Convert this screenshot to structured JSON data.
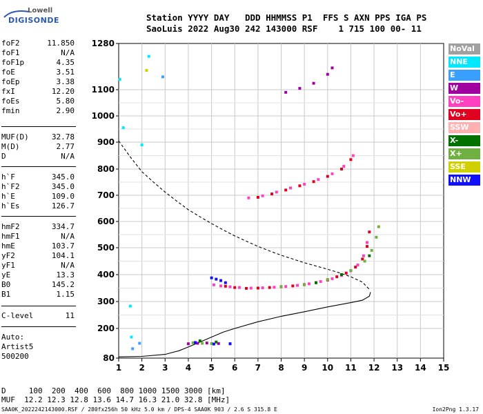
{
  "logo": {
    "line1": "Lowell",
    "line2": "DIGISONDE"
  },
  "header": {
    "line1": "Station YYYY DAY   DDD HHMMSS P1  FFS S AXN PPS IGA PS",
    "line2": "SaoLuis 2022 Aug30 242 143000 RSF    1 715 100 00- 11"
  },
  "params": [
    {
      "name": "foF2",
      "value": "11.850"
    },
    {
      "name": "foF1",
      "value": "N/A"
    },
    {
      "name": "foF1p",
      "value": "4.35"
    },
    {
      "name": "foE",
      "value": "3.51"
    },
    {
      "name": "foEp",
      "value": "3.38"
    },
    {
      "name": "fxI",
      "value": "12.20"
    },
    {
      "name": "foEs",
      "value": "5.80"
    },
    {
      "name": "fmin",
      "value": "2.90"
    },
    {
      "name": "MUF(D)",
      "value": "32.78"
    },
    {
      "name": "M(D)",
      "value": "2.77"
    },
    {
      "name": "D",
      "value": "N/A"
    },
    {
      "name": "h`F",
      "value": "345.0"
    },
    {
      "name": "h`F2",
      "value": "345.0"
    },
    {
      "name": "h`E",
      "value": "109.0"
    },
    {
      "name": "h`Es",
      "value": "126.7"
    },
    {
      "name": "hmF2",
      "value": "334.7"
    },
    {
      "name": "hmF1",
      "value": "N/A"
    },
    {
      "name": "hmE",
      "value": "103.7"
    },
    {
      "name": "yF2",
      "value": "104.1"
    },
    {
      "name": "yF1",
      "value": "N/A"
    },
    {
      "name": "yE",
      "value": "13.3"
    },
    {
      "name": "B0",
      "value": "145.2"
    },
    {
      "name": "B1",
      "value": "1.15"
    },
    {
      "name": "C-level",
      "value": "11"
    }
  ],
  "autoscaling": {
    "line1": "Auto:",
    "line2": "Artist5",
    "line3": "500200"
  },
  "legend": [
    {
      "label": "NoVal",
      "color": "#a0a0a0"
    },
    {
      "label": "NNE",
      "color": "#00e8ff"
    },
    {
      "label": "E",
      "color": "#3aa0ff"
    },
    {
      "label": "W",
      "color": "#a000a0"
    },
    {
      "label": "Vo-",
      "color": "#ff40c0"
    },
    {
      "label": "Vo+",
      "color": "#e00020"
    },
    {
      "label": "SSW",
      "color": "#ffb0b0"
    },
    {
      "label": "X-",
      "color": "#007000"
    },
    {
      "label": "X+",
      "color": "#70b040"
    },
    {
      "label": "SSE",
      "color": "#d0d000"
    },
    {
      "label": "NNW",
      "color": "#1010ff"
    }
  ],
  "muf_table": {
    "distance_line": "D     100  200  400  600  800 1000 1500 3000 [km]",
    "muf_line": "MUF  12.2 12.3 12.8 13.6 14.7 16.3 21.0 32.8 [MHz]"
  },
  "footer": {
    "text": "SAA0K_2022242143000.RSF / 280fx256h 50 kHz 5.0 km / DPS-4 SAA0K 903 / 2.6 S 315.8 E",
    "version": "Ion2Png 1.3.17"
  },
  "chart_data": {
    "type": "scatter",
    "title": "",
    "xlabel": "",
    "ylabel": "",
    "xlim": [
      1,
      15
    ],
    "ylim": [
      80,
      1280
    ],
    "xticks": [
      1,
      2,
      3,
      4,
      5,
      6,
      7,
      8,
      9,
      10,
      11,
      12,
      13,
      14,
      15
    ],
    "yticks": [
      80,
      200,
      300,
      400,
      500,
      600,
      700,
      800,
      900,
      1000,
      1100,
      1280
    ],
    "grid": true,
    "series": [
      {
        "name": "Vo-",
        "color": "#ff40c0",
        "points": [
          [
            5.1,
            362
          ],
          [
            5.4,
            358
          ],
          [
            5.8,
            355
          ],
          [
            6.2,
            352
          ],
          [
            6.7,
            350
          ],
          [
            7.2,
            351
          ],
          [
            7.7,
            353
          ],
          [
            8.2,
            356
          ],
          [
            8.7,
            360
          ],
          [
            9.2,
            366
          ],
          [
            9.7,
            374
          ],
          [
            10.2,
            385
          ],
          [
            10.6,
            397
          ],
          [
            11.0,
            414
          ],
          [
            11.3,
            436
          ],
          [
            11.55,
            470
          ],
          [
            11.7,
            520
          ],
          [
            6.6,
            690
          ],
          [
            7.2,
            698
          ],
          [
            7.8,
            712
          ],
          [
            8.4,
            728
          ],
          [
            9.0,
            742
          ],
          [
            9.6,
            760
          ],
          [
            10.2,
            782
          ],
          [
            10.7,
            810
          ],
          [
            11.1,
            850
          ]
        ]
      },
      {
        "name": "Vo+",
        "color": "#e00020",
        "points": [
          [
            5.6,
            357
          ],
          [
            6.0,
            352
          ],
          [
            6.5,
            349
          ],
          [
            7.0,
            350
          ],
          [
            7.5,
            352
          ],
          [
            8.0,
            355
          ],
          [
            8.5,
            358
          ],
          [
            9.0,
            363
          ],
          [
            9.5,
            370
          ],
          [
            10.0,
            380
          ],
          [
            10.4,
            392
          ],
          [
            10.8,
            406
          ],
          [
            11.2,
            428
          ],
          [
            11.5,
            458
          ],
          [
            11.7,
            505
          ],
          [
            11.8,
            560
          ],
          [
            7.0,
            692
          ],
          [
            7.6,
            705
          ],
          [
            8.2,
            720
          ],
          [
            8.8,
            736
          ],
          [
            9.4,
            752
          ],
          [
            10.0,
            772
          ],
          [
            10.6,
            800
          ],
          [
            11.0,
            835
          ]
        ]
      },
      {
        "name": "W",
        "color": "#a000a0",
        "points": [
          [
            4.0,
            138
          ],
          [
            4.4,
            140
          ],
          [
            4.8,
            141
          ],
          [
            5.3,
            139
          ],
          [
            5.8,
            138
          ],
          [
            8.2,
            1090
          ],
          [
            8.8,
            1105
          ],
          [
            9.4,
            1125
          ],
          [
            10.0,
            1160
          ],
          [
            10.2,
            1185
          ]
        ]
      },
      {
        "name": "X+",
        "color": "#70b040",
        "points": [
          [
            4.2,
            142
          ],
          [
            4.6,
            140
          ],
          [
            5.0,
            139
          ],
          [
            8.0,
            356
          ],
          [
            9.0,
            362
          ],
          [
            10.0,
            382
          ],
          [
            11.0,
            415
          ],
          [
            11.6,
            450
          ],
          [
            11.9,
            490
          ],
          [
            12.1,
            540
          ],
          [
            12.2,
            580
          ]
        ]
      },
      {
        "name": "X-",
        "color": "#007000",
        "points": [
          [
            4.5,
            150
          ],
          [
            5.2,
            145
          ],
          [
            9.5,
            370
          ],
          [
            10.6,
            400
          ],
          [
            11.8,
            470
          ]
        ]
      },
      {
        "name": "NNW",
        "color": "#1010ff",
        "points": [
          [
            4.3,
            143
          ],
          [
            5.1,
            137
          ],
          [
            5.8,
            138
          ],
          [
            5.0,
            388
          ],
          [
            5.2,
            383
          ],
          [
            5.4,
            378
          ],
          [
            5.6,
            370
          ]
        ]
      },
      {
        "name": "NNE",
        "color": "#00e8ff",
        "points": [
          [
            1.05,
            1140
          ],
          [
            1.2,
            955
          ],
          [
            1.5,
            283
          ],
          [
            1.55,
            165
          ],
          [
            2.3,
            1230
          ],
          [
            2.0,
            890
          ]
        ]
      },
      {
        "name": "E",
        "color": "#3aa0ff",
        "points": [
          [
            2.9,
            1150
          ],
          [
            1.6,
            118
          ],
          [
            1.9,
            140
          ]
        ]
      },
      {
        "name": "SSE",
        "color": "#d0d000",
        "points": [
          [
            2.2,
            1175
          ]
        ]
      }
    ],
    "curves": [
      {
        "name": "virtual-height-fit",
        "style": "dashed",
        "points": [
          [
            1.0,
            905
          ],
          [
            1.5,
            845
          ],
          [
            2.0,
            790
          ],
          [
            2.5,
            750
          ],
          [
            3.0,
            712
          ],
          [
            3.5,
            678
          ],
          [
            4.0,
            645
          ],
          [
            4.5,
            618
          ],
          [
            5.0,
            592
          ],
          [
            5.5,
            568
          ],
          [
            6.0,
            545
          ],
          [
            6.5,
            525
          ],
          [
            7.0,
            505
          ],
          [
            7.5,
            488
          ],
          [
            8.0,
            472
          ],
          [
            8.5,
            458
          ],
          [
            9.0,
            444
          ],
          [
            9.5,
            432
          ],
          [
            10.0,
            420
          ],
          [
            10.5,
            407
          ],
          [
            11.0,
            392
          ],
          [
            11.5,
            372
          ],
          [
            11.8,
            345
          ]
        ]
      },
      {
        "name": "true-height-profile",
        "style": "solid",
        "points": [
          [
            1.0,
            85
          ],
          [
            2.0,
            87
          ],
          [
            3.0,
            95
          ],
          [
            3.6,
            110
          ],
          [
            4.0,
            125
          ],
          [
            4.5,
            145
          ],
          [
            5.0,
            165
          ],
          [
            5.5,
            185
          ],
          [
            6.0,
            200
          ],
          [
            7.0,
            225
          ],
          [
            8.0,
            245
          ],
          [
            9.0,
            262
          ],
          [
            10.0,
            280
          ],
          [
            11.0,
            296
          ],
          [
            11.5,
            305
          ],
          [
            11.8,
            320
          ],
          [
            11.85,
            335
          ]
        ]
      }
    ]
  }
}
